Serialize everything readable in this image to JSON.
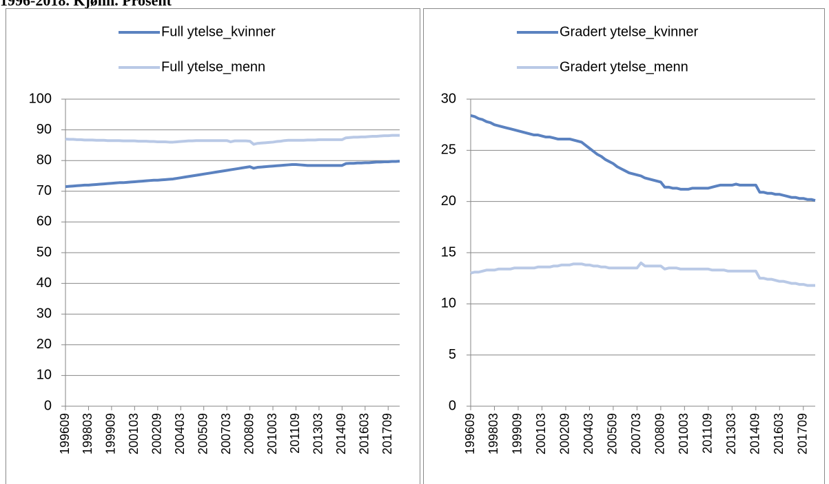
{
  "heading": "1996-2018. Kjønn. Prosent",
  "chart_data": [
    {
      "type": "line",
      "categories": [
        "199609",
        null,
        null,
        null,
        null,
        null,
        "199803",
        null,
        null,
        null,
        null,
        null,
        "199909",
        null,
        null,
        null,
        null,
        null,
        "200103",
        null,
        null,
        null,
        null,
        null,
        "200209",
        null,
        null,
        null,
        null,
        null,
        "200403",
        null,
        null,
        null,
        null,
        null,
        "200509",
        null,
        null,
        null,
        null,
        null,
        "200703",
        null,
        null,
        null,
        null,
        null,
        "200809",
        null,
        null,
        null,
        null,
        null,
        "201003",
        null,
        null,
        null,
        null,
        null,
        "201109",
        null,
        null,
        null,
        null,
        null,
        "201303",
        null,
        null,
        null,
        null,
        null,
        "201409",
        null,
        null,
        null,
        null,
        null,
        "201603",
        null,
        null,
        null,
        null,
        null,
        "201709",
        null,
        null,
        null
      ],
      "series": [
        {
          "name": "Full ytelse_kvinner",
          "color": "#5b82c0",
          "values": [
            71.5,
            71.6,
            71.7,
            71.8,
            71.9,
            72.0,
            72.0,
            72.1,
            72.2,
            72.3,
            72.4,
            72.5,
            72.6,
            72.7,
            72.8,
            72.8,
            72.9,
            73.0,
            73.1,
            73.2,
            73.3,
            73.4,
            73.5,
            73.6,
            73.6,
            73.7,
            73.8,
            73.9,
            74.0,
            74.2,
            74.4,
            74.6,
            74.8,
            75.0,
            75.2,
            75.4,
            75.6,
            75.8,
            76.0,
            76.2,
            76.4,
            76.6,
            76.8,
            77.0,
            77.2,
            77.4,
            77.6,
            77.8,
            78.0,
            77.5,
            77.8,
            77.9,
            78.0,
            78.1,
            78.2,
            78.3,
            78.4,
            78.5,
            78.6,
            78.7,
            78.7,
            78.6,
            78.5,
            78.4,
            78.4,
            78.4,
            78.4,
            78.4,
            78.4,
            78.4,
            78.4,
            78.4,
            78.4,
            79.0,
            79.1,
            79.1,
            79.2,
            79.2,
            79.3,
            79.3,
            79.4,
            79.5,
            79.5,
            79.6,
            79.6,
            79.7,
            79.7,
            79.8
          ]
        },
        {
          "name": "Full ytelse_menn",
          "color": "#b9c9e6",
          "values": [
            87.0,
            86.9,
            86.9,
            86.8,
            86.8,
            86.7,
            86.7,
            86.7,
            86.6,
            86.6,
            86.6,
            86.5,
            86.5,
            86.5,
            86.5,
            86.4,
            86.4,
            86.4,
            86.4,
            86.3,
            86.3,
            86.3,
            86.2,
            86.2,
            86.1,
            86.1,
            86.1,
            86.0,
            86.0,
            86.1,
            86.2,
            86.3,
            86.4,
            86.4,
            86.5,
            86.5,
            86.5,
            86.5,
            86.5,
            86.5,
            86.5,
            86.5,
            86.5,
            86.1,
            86.4,
            86.4,
            86.4,
            86.4,
            86.3,
            85.3,
            85.6,
            85.7,
            85.8,
            85.9,
            86.0,
            86.2,
            86.3,
            86.5,
            86.6,
            86.6,
            86.6,
            86.6,
            86.6,
            86.7,
            86.7,
            86.7,
            86.8,
            86.8,
            86.8,
            86.8,
            86.8,
            86.8,
            86.8,
            87.4,
            87.5,
            87.6,
            87.6,
            87.7,
            87.7,
            87.8,
            87.9,
            87.9,
            88.0,
            88.1,
            88.1,
            88.2,
            88.2,
            88.2
          ]
        }
      ],
      "ylim": [
        0,
        100
      ],
      "yticks": [
        0,
        10,
        20,
        30,
        40,
        50,
        60,
        70,
        80,
        90,
        100
      ],
      "grid": true,
      "legend": "top"
    },
    {
      "type": "line",
      "categories": [
        "199609",
        null,
        null,
        null,
        null,
        null,
        "199803",
        null,
        null,
        null,
        null,
        null,
        "199909",
        null,
        null,
        null,
        null,
        null,
        "200103",
        null,
        null,
        null,
        null,
        null,
        "200209",
        null,
        null,
        null,
        null,
        null,
        "200403",
        null,
        null,
        null,
        null,
        null,
        "200509",
        null,
        null,
        null,
        null,
        null,
        "200703",
        null,
        null,
        null,
        null,
        null,
        "200809",
        null,
        null,
        null,
        null,
        null,
        "201003",
        null,
        null,
        null,
        null,
        null,
        "201109",
        null,
        null,
        null,
        null,
        null,
        "201303",
        null,
        null,
        null,
        null,
        null,
        "201409",
        null,
        null,
        null,
        null,
        null,
        "201603",
        null,
        null,
        null,
        null,
        null,
        "201709",
        null,
        null,
        null
      ],
      "series": [
        {
          "name": "Gradert ytelse_kvinner",
          "color": "#5b82c0",
          "values": [
            28.4,
            28.3,
            28.1,
            28.0,
            27.8,
            27.7,
            27.5,
            27.4,
            27.3,
            27.2,
            27.1,
            27.0,
            26.9,
            26.8,
            26.7,
            26.6,
            26.5,
            26.5,
            26.4,
            26.3,
            26.3,
            26.2,
            26.1,
            26.1,
            26.1,
            26.1,
            26.0,
            25.9,
            25.8,
            25.5,
            25.2,
            24.9,
            24.6,
            24.4,
            24.1,
            23.9,
            23.7,
            23.4,
            23.2,
            23.0,
            22.8,
            22.7,
            22.6,
            22.5,
            22.3,
            22.2,
            22.1,
            22.0,
            21.9,
            21.4,
            21.4,
            21.3,
            21.3,
            21.2,
            21.2,
            21.2,
            21.3,
            21.3,
            21.3,
            21.3,
            21.3,
            21.4,
            21.5,
            21.6,
            21.6,
            21.6,
            21.6,
            21.7,
            21.6,
            21.6,
            21.6,
            21.6,
            21.6,
            20.9,
            20.9,
            20.8,
            20.8,
            20.7,
            20.7,
            20.6,
            20.5,
            20.4,
            20.4,
            20.3,
            20.3,
            20.2,
            20.2,
            20.1
          ]
        },
        {
          "name": "Gradert ytelse_menn",
          "color": "#b9c9e6",
          "values": [
            13.0,
            13.1,
            13.1,
            13.2,
            13.3,
            13.3,
            13.3,
            13.4,
            13.4,
            13.4,
            13.4,
            13.5,
            13.5,
            13.5,
            13.5,
            13.5,
            13.5,
            13.6,
            13.6,
            13.6,
            13.6,
            13.7,
            13.7,
            13.8,
            13.8,
            13.8,
            13.9,
            13.9,
            13.9,
            13.8,
            13.8,
            13.7,
            13.7,
            13.6,
            13.6,
            13.5,
            13.5,
            13.5,
            13.5,
            13.5,
            13.5,
            13.5,
            13.5,
            14.0,
            13.7,
            13.7,
            13.7,
            13.7,
            13.7,
            13.4,
            13.5,
            13.5,
            13.5,
            13.4,
            13.4,
            13.4,
            13.4,
            13.4,
            13.4,
            13.4,
            13.4,
            13.3,
            13.3,
            13.3,
            13.3,
            13.2,
            13.2,
            13.2,
            13.2,
            13.2,
            13.2,
            13.2,
            13.2,
            12.5,
            12.5,
            12.4,
            12.4,
            12.3,
            12.2,
            12.2,
            12.1,
            12.0,
            12.0,
            11.9,
            11.9,
            11.8,
            11.8,
            11.8
          ]
        }
      ],
      "ylim": [
        0,
        30
      ],
      "yticks": [
        0,
        5,
        10,
        15,
        20,
        25,
        30
      ],
      "grid": true,
      "legend": "top"
    }
  ]
}
